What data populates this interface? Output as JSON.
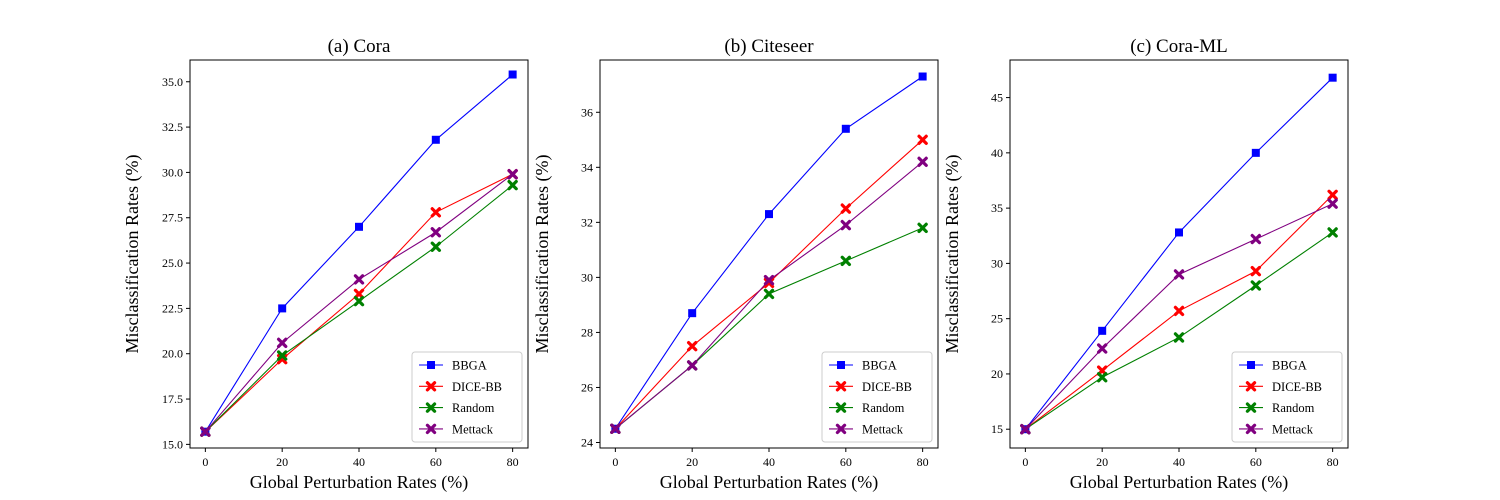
{
  "chart_data": [
    {
      "type": "line",
      "title": "(a) Cora",
      "xlabel": "Global Perturbation Rates (%)",
      "ylabel": "Misclassification Rates (%)",
      "x": [
        0,
        20,
        40,
        60,
        80
      ],
      "xticks": [
        "0",
        "20",
        "40",
        "60",
        "80"
      ],
      "xlim": [
        -4,
        84
      ],
      "ylim": [
        14.8,
        36.2
      ],
      "yticks": [
        15.0,
        17.5,
        20.0,
        22.5,
        25.0,
        27.5,
        30.0,
        32.5,
        35.0
      ],
      "ytick_labels": [
        "15.0",
        "17.5",
        "20.0",
        "22.5",
        "25.0",
        "27.5",
        "30.0",
        "32.5",
        "35.0"
      ],
      "legend_position": "lower-right",
      "series": [
        {
          "name": "BBGA",
          "values": [
            15.7,
            22.5,
            27.0,
            31.8,
            35.4
          ]
        },
        {
          "name": "DICE-BB",
          "values": [
            15.7,
            19.7,
            23.3,
            27.8,
            29.9
          ]
        },
        {
          "name": "Random",
          "values": [
            15.7,
            19.9,
            22.9,
            25.9,
            29.3
          ]
        },
        {
          "name": "Mettack",
          "values": [
            15.7,
            20.6,
            24.1,
            26.7,
            29.9
          ]
        }
      ]
    },
    {
      "type": "line",
      "title": "(b) Citeseer",
      "xlabel": "Global Perturbation Rates (%)",
      "ylabel": "Misclassification Rates (%)",
      "x": [
        0,
        20,
        40,
        60,
        80
      ],
      "xticks": [
        "0",
        "20",
        "40",
        "60",
        "80"
      ],
      "xlim": [
        -4,
        84
      ],
      "ylim": [
        23.8,
        37.9
      ],
      "yticks": [
        24,
        26,
        28,
        30,
        32,
        34,
        36
      ],
      "ytick_labels": [
        "24",
        "26",
        "28",
        "30",
        "32",
        "34",
        "36"
      ],
      "legend_position": "lower-right",
      "series": [
        {
          "name": "BBGA",
          "values": [
            24.5,
            28.7,
            32.3,
            35.4,
            37.3
          ]
        },
        {
          "name": "DICE-BB",
          "values": [
            24.5,
            27.5,
            29.8,
            32.5,
            35.0
          ]
        },
        {
          "name": "Random",
          "values": [
            24.5,
            26.8,
            29.4,
            30.6,
            31.8
          ]
        },
        {
          "name": "Mettack",
          "values": [
            24.5,
            26.8,
            29.9,
            31.9,
            34.2
          ]
        }
      ]
    },
    {
      "type": "line",
      "title": "(c) Cora-ML",
      "xlabel": "Global Perturbation Rates (%)",
      "ylabel": "Misclassification Rates (%)",
      "x": [
        0,
        20,
        40,
        60,
        80
      ],
      "xticks": [
        "0",
        "20",
        "40",
        "60",
        "80"
      ],
      "xlim": [
        -4,
        84
      ],
      "ylim": [
        13.3,
        48.4
      ],
      "yticks": [
        15,
        20,
        25,
        30,
        35,
        40,
        45
      ],
      "ytick_labels": [
        "15",
        "20",
        "25",
        "30",
        "35",
        "40",
        "45"
      ],
      "legend_position": "lower-right",
      "series": [
        {
          "name": "BBGA",
          "values": [
            15.0,
            23.9,
            32.8,
            40.0,
            46.8
          ]
        },
        {
          "name": "DICE-BB",
          "values": [
            15.0,
            20.3,
            25.7,
            29.3,
            36.2
          ]
        },
        {
          "name": "Random",
          "values": [
            15.0,
            19.7,
            23.3,
            28.0,
            32.8
          ]
        },
        {
          "name": "Mettack",
          "values": [
            15.0,
            22.3,
            29.0,
            32.2,
            35.4
          ]
        }
      ]
    }
  ],
  "series_styles": [
    {
      "name": "BBGA",
      "color": "#0000ff",
      "marker": "square"
    },
    {
      "name": "DICE-BB",
      "color": "#ff0000",
      "marker": "x"
    },
    {
      "name": "Random",
      "color": "#008000",
      "marker": "x"
    },
    {
      "name": "Mettack",
      "color": "#800080",
      "marker": "x"
    }
  ]
}
